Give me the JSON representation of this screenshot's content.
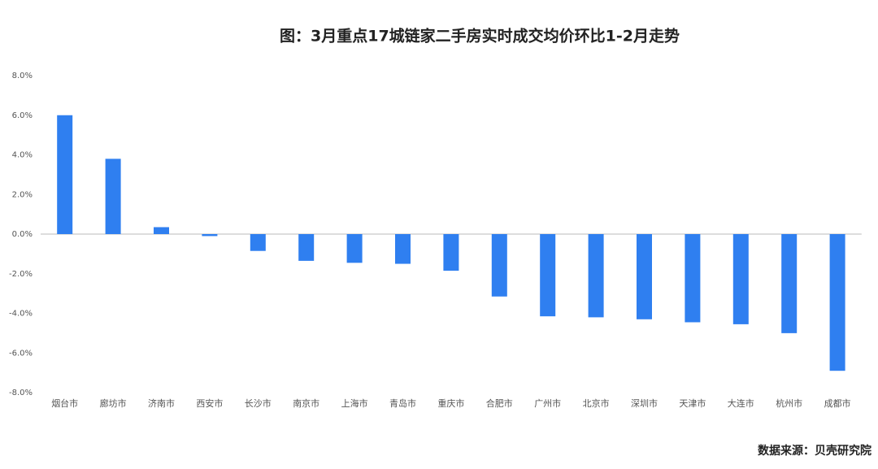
{
  "chart_data": {
    "type": "bar",
    "title": "图：3月重点17城链家二手房实时成交均价环比1-2月走势",
    "source": "数据来源：贝壳研究院",
    "categories": [
      "烟台市",
      "廊坊市",
      "济南市",
      "西安市",
      "长沙市",
      "南京市",
      "上海市",
      "青岛市",
      "重庆市",
      "合肥市",
      "广州市",
      "北京市",
      "深圳市",
      "天津市",
      "大连市",
      "杭州市",
      "成都市"
    ],
    "values": [
      6.0,
      3.8,
      0.35,
      -0.1,
      -0.85,
      -1.35,
      -1.45,
      -1.5,
      -1.85,
      -3.15,
      -4.15,
      -4.2,
      -4.3,
      -4.45,
      -4.55,
      -5.0,
      -6.9
    ],
    "color": "#2f7ff0",
    "ylim": [
      -8,
      8
    ],
    "yticks": [
      {
        "value": 8,
        "label": "8.0%"
      },
      {
        "value": 6,
        "label": "6.0%"
      },
      {
        "value": 4,
        "label": "4.0%"
      },
      {
        "value": 2,
        "label": "2.0%"
      },
      {
        "value": 0,
        "label": "0.0%"
      },
      {
        "value": -2,
        "label": "-2.0%"
      },
      {
        "value": -4,
        "label": "-4.0%"
      },
      {
        "value": -6,
        "label": "-6.0%"
      },
      {
        "value": -8,
        "label": "-8.0%"
      }
    ],
    "grid": false
  }
}
